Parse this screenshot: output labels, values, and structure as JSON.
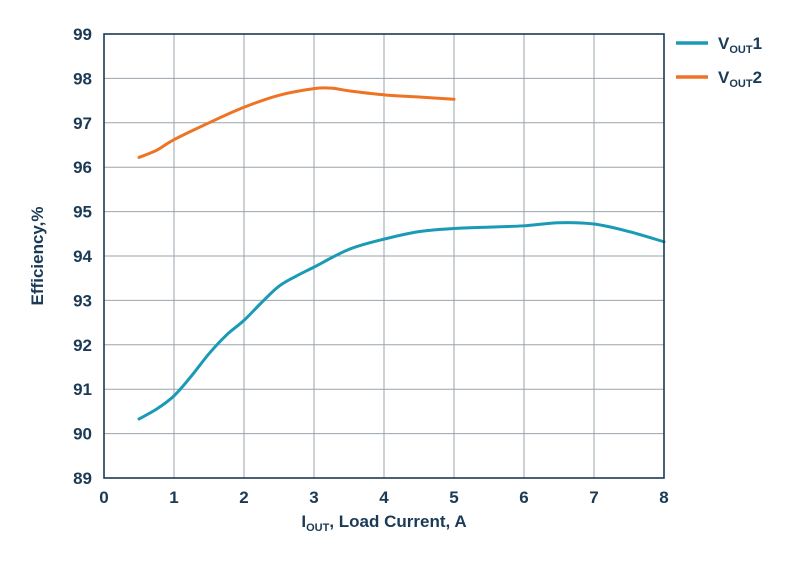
{
  "chart_data": {
    "type": "line",
    "xlabel": {
      "main": "I",
      "sub": "OUT",
      "rest": ", Load Current, A"
    },
    "ylabel": "Efficiency,%",
    "xlim": [
      0,
      8
    ],
    "ylim": [
      89,
      99
    ],
    "xticks": [
      "0",
      "1",
      "2",
      "3",
      "4",
      "5",
      "6",
      "7",
      "8"
    ],
    "yticks": [
      "89",
      "90",
      "91",
      "92",
      "93",
      "94",
      "95",
      "96",
      "97",
      "98",
      "99"
    ],
    "grid": true,
    "legend_position": "right",
    "series": [
      {
        "name": {
          "main": "V",
          "sub": "OUT",
          "rest": "1"
        },
        "color": "#1a9ab5",
        "points": [
          [
            0.5,
            90.33
          ],
          [
            0.75,
            90.55
          ],
          [
            1.0,
            90.85
          ],
          [
            1.25,
            91.3
          ],
          [
            1.5,
            91.8
          ],
          [
            1.75,
            92.22
          ],
          [
            2.0,
            92.55
          ],
          [
            2.25,
            92.95
          ],
          [
            2.5,
            93.32
          ],
          [
            2.75,
            93.55
          ],
          [
            3.0,
            93.75
          ],
          [
            3.5,
            94.15
          ],
          [
            4.0,
            94.38
          ],
          [
            4.5,
            94.55
          ],
          [
            5.0,
            94.62
          ],
          [
            5.5,
            94.65
          ],
          [
            6.0,
            94.68
          ],
          [
            6.5,
            94.75
          ],
          [
            7.0,
            94.72
          ],
          [
            7.5,
            94.55
          ],
          [
            8.0,
            94.32
          ]
        ]
      },
      {
        "name": {
          "main": "V",
          "sub": "OUT",
          "rest": "2"
        },
        "color": "#ee7322",
        "points": [
          [
            0.5,
            96.22
          ],
          [
            0.75,
            96.38
          ],
          [
            1.0,
            96.62
          ],
          [
            1.5,
            97.0
          ],
          [
            2.0,
            97.35
          ],
          [
            2.5,
            97.62
          ],
          [
            3.0,
            97.77
          ],
          [
            3.25,
            97.78
          ],
          [
            3.5,
            97.72
          ],
          [
            4.0,
            97.63
          ],
          [
            4.5,
            97.58
          ],
          [
            5.0,
            97.53
          ]
        ]
      }
    ]
  }
}
